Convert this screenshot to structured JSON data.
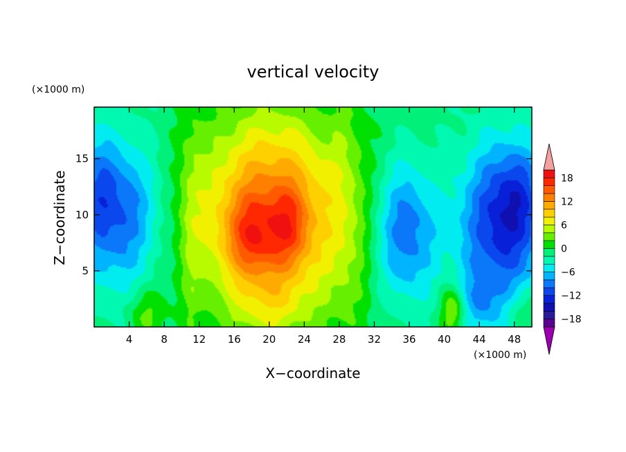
{
  "chart_data": {
    "type": "heatmap",
    "title": "vertical velocity",
    "xlabel": "X−coordinate",
    "ylabel": "Z−coordinate",
    "x_units": "(×1000 m)",
    "y_units": "(×1000 m)",
    "xlim": [
      0,
      50
    ],
    "ylim": [
      0,
      19.6
    ],
    "x_ticks": [
      4,
      8,
      12,
      16,
      20,
      24,
      28,
      32,
      36,
      40,
      44,
      48
    ],
    "x_tick_labels": [
      "4",
      "8",
      "12",
      "16",
      "20",
      "24",
      "28",
      "32",
      "36",
      "40",
      "44",
      "48"
    ],
    "y_ticks": [
      5,
      10,
      15
    ],
    "y_tick_labels": [
      "5",
      "10",
      "15"
    ],
    "colorbar": {
      "levels": [
        -20,
        -18,
        -16,
        -14,
        -12,
        -10,
        -8,
        -6,
        -4,
        -2,
        0,
        2,
        4,
        6,
        8,
        10,
        12,
        14,
        16,
        18,
        20
      ],
      "tick_values": [
        -18,
        -12,
        -6,
        0,
        6,
        12,
        18
      ],
      "tick_labels": [
        "−18",
        "−12",
        "−6",
        "0",
        "6",
        "12",
        "18"
      ],
      "colors": [
        "#5a0090",
        "#2a1a9a",
        "#1010b0",
        "#0820d8",
        "#0a48ee",
        "#0a78f8",
        "#00b4ff",
        "#00ecf0",
        "#00f8b0",
        "#00f07a",
        "#00e000",
        "#66f000",
        "#b8fa00",
        "#f0f000",
        "#ffd000",
        "#ffaa00",
        "#ff8000",
        "#ff5a00",
        "#ff2800",
        "#f01010"
      ],
      "under_color": "#9a00b0",
      "over_color": "#f2a0a0"
    },
    "background_value": -1.5,
    "features": [
      {
        "x": 20,
        "z": 9,
        "sx": 6,
        "sz": 5.5,
        "amp": 13
      },
      {
        "x": 18,
        "z": 8,
        "sx": 2,
        "sz": 2.5,
        "amp": 6
      },
      {
        "x": 22.3,
        "z": 9,
        "sx": 1.5,
        "sz": 2.5,
        "amp": 5
      },
      {
        "x": 20,
        "z": 16,
        "sx": 5,
        "sz": 4,
        "amp": 3
      },
      {
        "x": 20,
        "z": 1.5,
        "sx": 3,
        "sz": 2,
        "amp": 3
      },
      {
        "x": 2.5,
        "z": 10,
        "sx": 3.5,
        "sz": 4.5,
        "amp": -9
      },
      {
        "x": 0,
        "z": 13,
        "sx": 2,
        "sz": 3,
        "amp": -3
      },
      {
        "x": 35.5,
        "z": 8.5,
        "sx": 2.5,
        "sz": 4.5,
        "amp": -9
      },
      {
        "x": 46.5,
        "z": 9,
        "sx": 3.5,
        "sz": 5,
        "amp": -11
      },
      {
        "x": 48.5,
        "z": 12,
        "sx": 2,
        "sz": 3,
        "amp": -4
      },
      {
        "x": 44,
        "z": 2,
        "sx": 2,
        "sz": 2,
        "amp": -4
      },
      {
        "x": 41,
        "z": 1.5,
        "sx": 1,
        "sz": 1.5,
        "amp": 7
      },
      {
        "x": 6,
        "z": 1.2,
        "sx": 1.5,
        "sz": 1.5,
        "amp": 4
      },
      {
        "x": 49,
        "z": 1.5,
        "sx": 1.5,
        "sz": 1.5,
        "amp": 3
      },
      {
        "x": 11,
        "z": 10,
        "sx": 1,
        "sz": 9,
        "amp": 2.5
      },
      {
        "x": 29,
        "z": 10,
        "sx": 1.5,
        "sz": 9,
        "amp": 2
      },
      {
        "x": 25,
        "z": 10,
        "sx": 10,
        "sz": 12,
        "amp": 1.5
      }
    ]
  }
}
